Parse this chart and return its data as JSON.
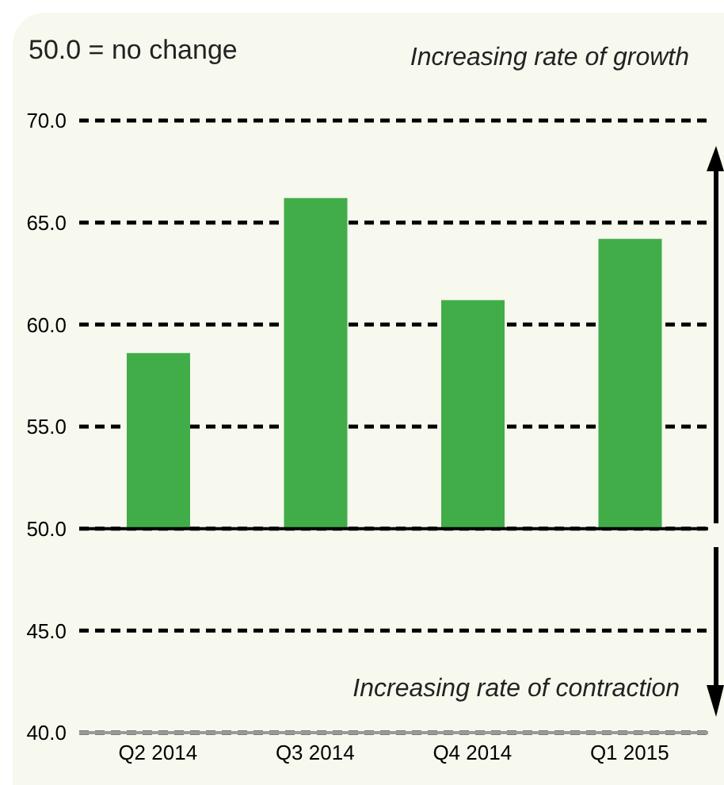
{
  "chart_data": {
    "type": "bar",
    "categories": [
      "Q2 2014",
      "Q3 2014",
      "Q4 2014",
      "Q1 2015"
    ],
    "values": [
      8.6,
      16.2,
      11.2,
      14.2
    ],
    "base": [
      50,
      50,
      50,
      50
    ],
    "color": "#41ad49",
    "ylim": [
      40,
      70
    ],
    "yticks": [
      {
        "value": 40,
        "label": "40.0"
      },
      {
        "value": 45,
        "label": "45.0"
      },
      {
        "value": 50,
        "label": "50.0"
      },
      {
        "value": 55,
        "label": "55.0"
      },
      {
        "value": 60,
        "label": "60.0"
      },
      {
        "value": 65,
        "label": "65.0"
      },
      {
        "value": 70,
        "label": "70.0"
      }
    ],
    "grid": "y",
    "line_style": "dashed",
    "ref_lines": [
      {
        "axis": "y",
        "value": 50,
        "color": "#000000"
      }
    ],
    "annotations": [
      "50.0 = no change",
      "Increasing rate of growth",
      "Increasing rate of contraction"
    ]
  }
}
